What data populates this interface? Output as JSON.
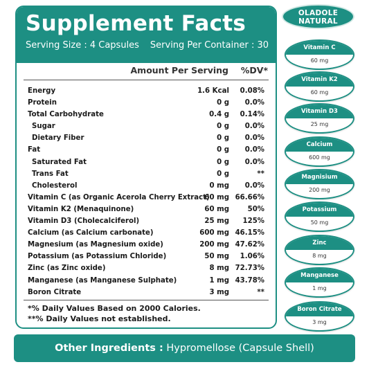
{
  "header": {
    "title": "Supplement Facts",
    "serving_size": "Serving Size : 4 Capsules",
    "serving_per_container": "Serving Per Container : 30"
  },
  "columns": {
    "amount": "Amount Per Serving",
    "dv": "%DV*"
  },
  "rows": [
    {
      "name": "Energy",
      "amount": "1.6 Kcal",
      "dv": "0.08%"
    },
    {
      "name": "Protein",
      "amount": "0 g",
      "dv": "0.0%"
    },
    {
      "name": "Total Carbohydrate",
      "amount": "0.4 g",
      "dv": "0.14%"
    },
    {
      "name": "Sugar",
      "amount": "0 g",
      "dv": "0.0%"
    },
    {
      "name": "Dietary Fiber",
      "amount": "0 g",
      "dv": "0.0%"
    },
    {
      "name": "Fat",
      "amount": "0 g",
      "dv": "0.0%"
    },
    {
      "name": "Saturated Fat",
      "amount": "0 g",
      "dv": "0.0%"
    },
    {
      "name": "Trans Fat",
      "amount": "0 g",
      "dv": "**"
    },
    {
      "name": "Cholesterol",
      "amount": "0 mg",
      "dv": "0.0%"
    },
    {
      "name": "Vitamin C (as Organic Acerola Cherry Extract)",
      "amount": "60 mg",
      "dv": "66.66%"
    },
    {
      "name": "Vitamin K2 (Menaquinone)",
      "amount": "60 mg",
      "dv": "50%"
    },
    {
      "name": "Vitamin D3 (Cholecalciferol)",
      "amount": "25 mg",
      "dv": "125%"
    },
    {
      "name": "Calcium (as Calcium carbonate)",
      "amount": "600 mg",
      "dv": "46.15%"
    },
    {
      "name": "Magnesium (as Magnesium oxide)",
      "amount": "200 mg",
      "dv": "47.62%"
    },
    {
      "name": "Potassium (as Potassium Chloride)",
      "amount": "50 mg",
      "dv": "1.06%"
    },
    {
      "name": "Zinc (as Zinc oxide)",
      "amount": "8 mg",
      "dv": "72.73%"
    },
    {
      "name": "Manganese (as Manganese Sulphate)",
      "amount": "1 mg",
      "dv": "43.78%"
    },
    {
      "name": "Boron Citrate",
      "amount": "3 mg",
      "dv": "**"
    }
  ],
  "notes": {
    "line1": "*% Daily Values Based on 2000 Calories.",
    "line2": "**% Daily Values not established."
  },
  "brand": {
    "line1": "OLADOLE",
    "line2": "NATURAL"
  },
  "pills": [
    {
      "name": "Vitamin C",
      "dose": "60 mg"
    },
    {
      "name": "Vitamin K2",
      "dose": "60 mg"
    },
    {
      "name": "Vitamin D3",
      "dose": "25 mg"
    },
    {
      "name": "Calcium",
      "dose": "600 mg"
    },
    {
      "name": "Magnisium",
      "dose": "200 mg"
    },
    {
      "name": "Potassium",
      "dose": "50 mg"
    },
    {
      "name": "Zinc",
      "dose": "8 mg"
    },
    {
      "name": "Manganese",
      "dose": "1 mg"
    },
    {
      "name": "Boron Citrate",
      "dose": "3 mg"
    }
  ],
  "footer": {
    "label": "Other Ingredients :",
    "value": " Hypromellose (Capsule Shell)"
  },
  "colors": {
    "accent": "#1d8f83",
    "text": "#1a1a1a"
  }
}
